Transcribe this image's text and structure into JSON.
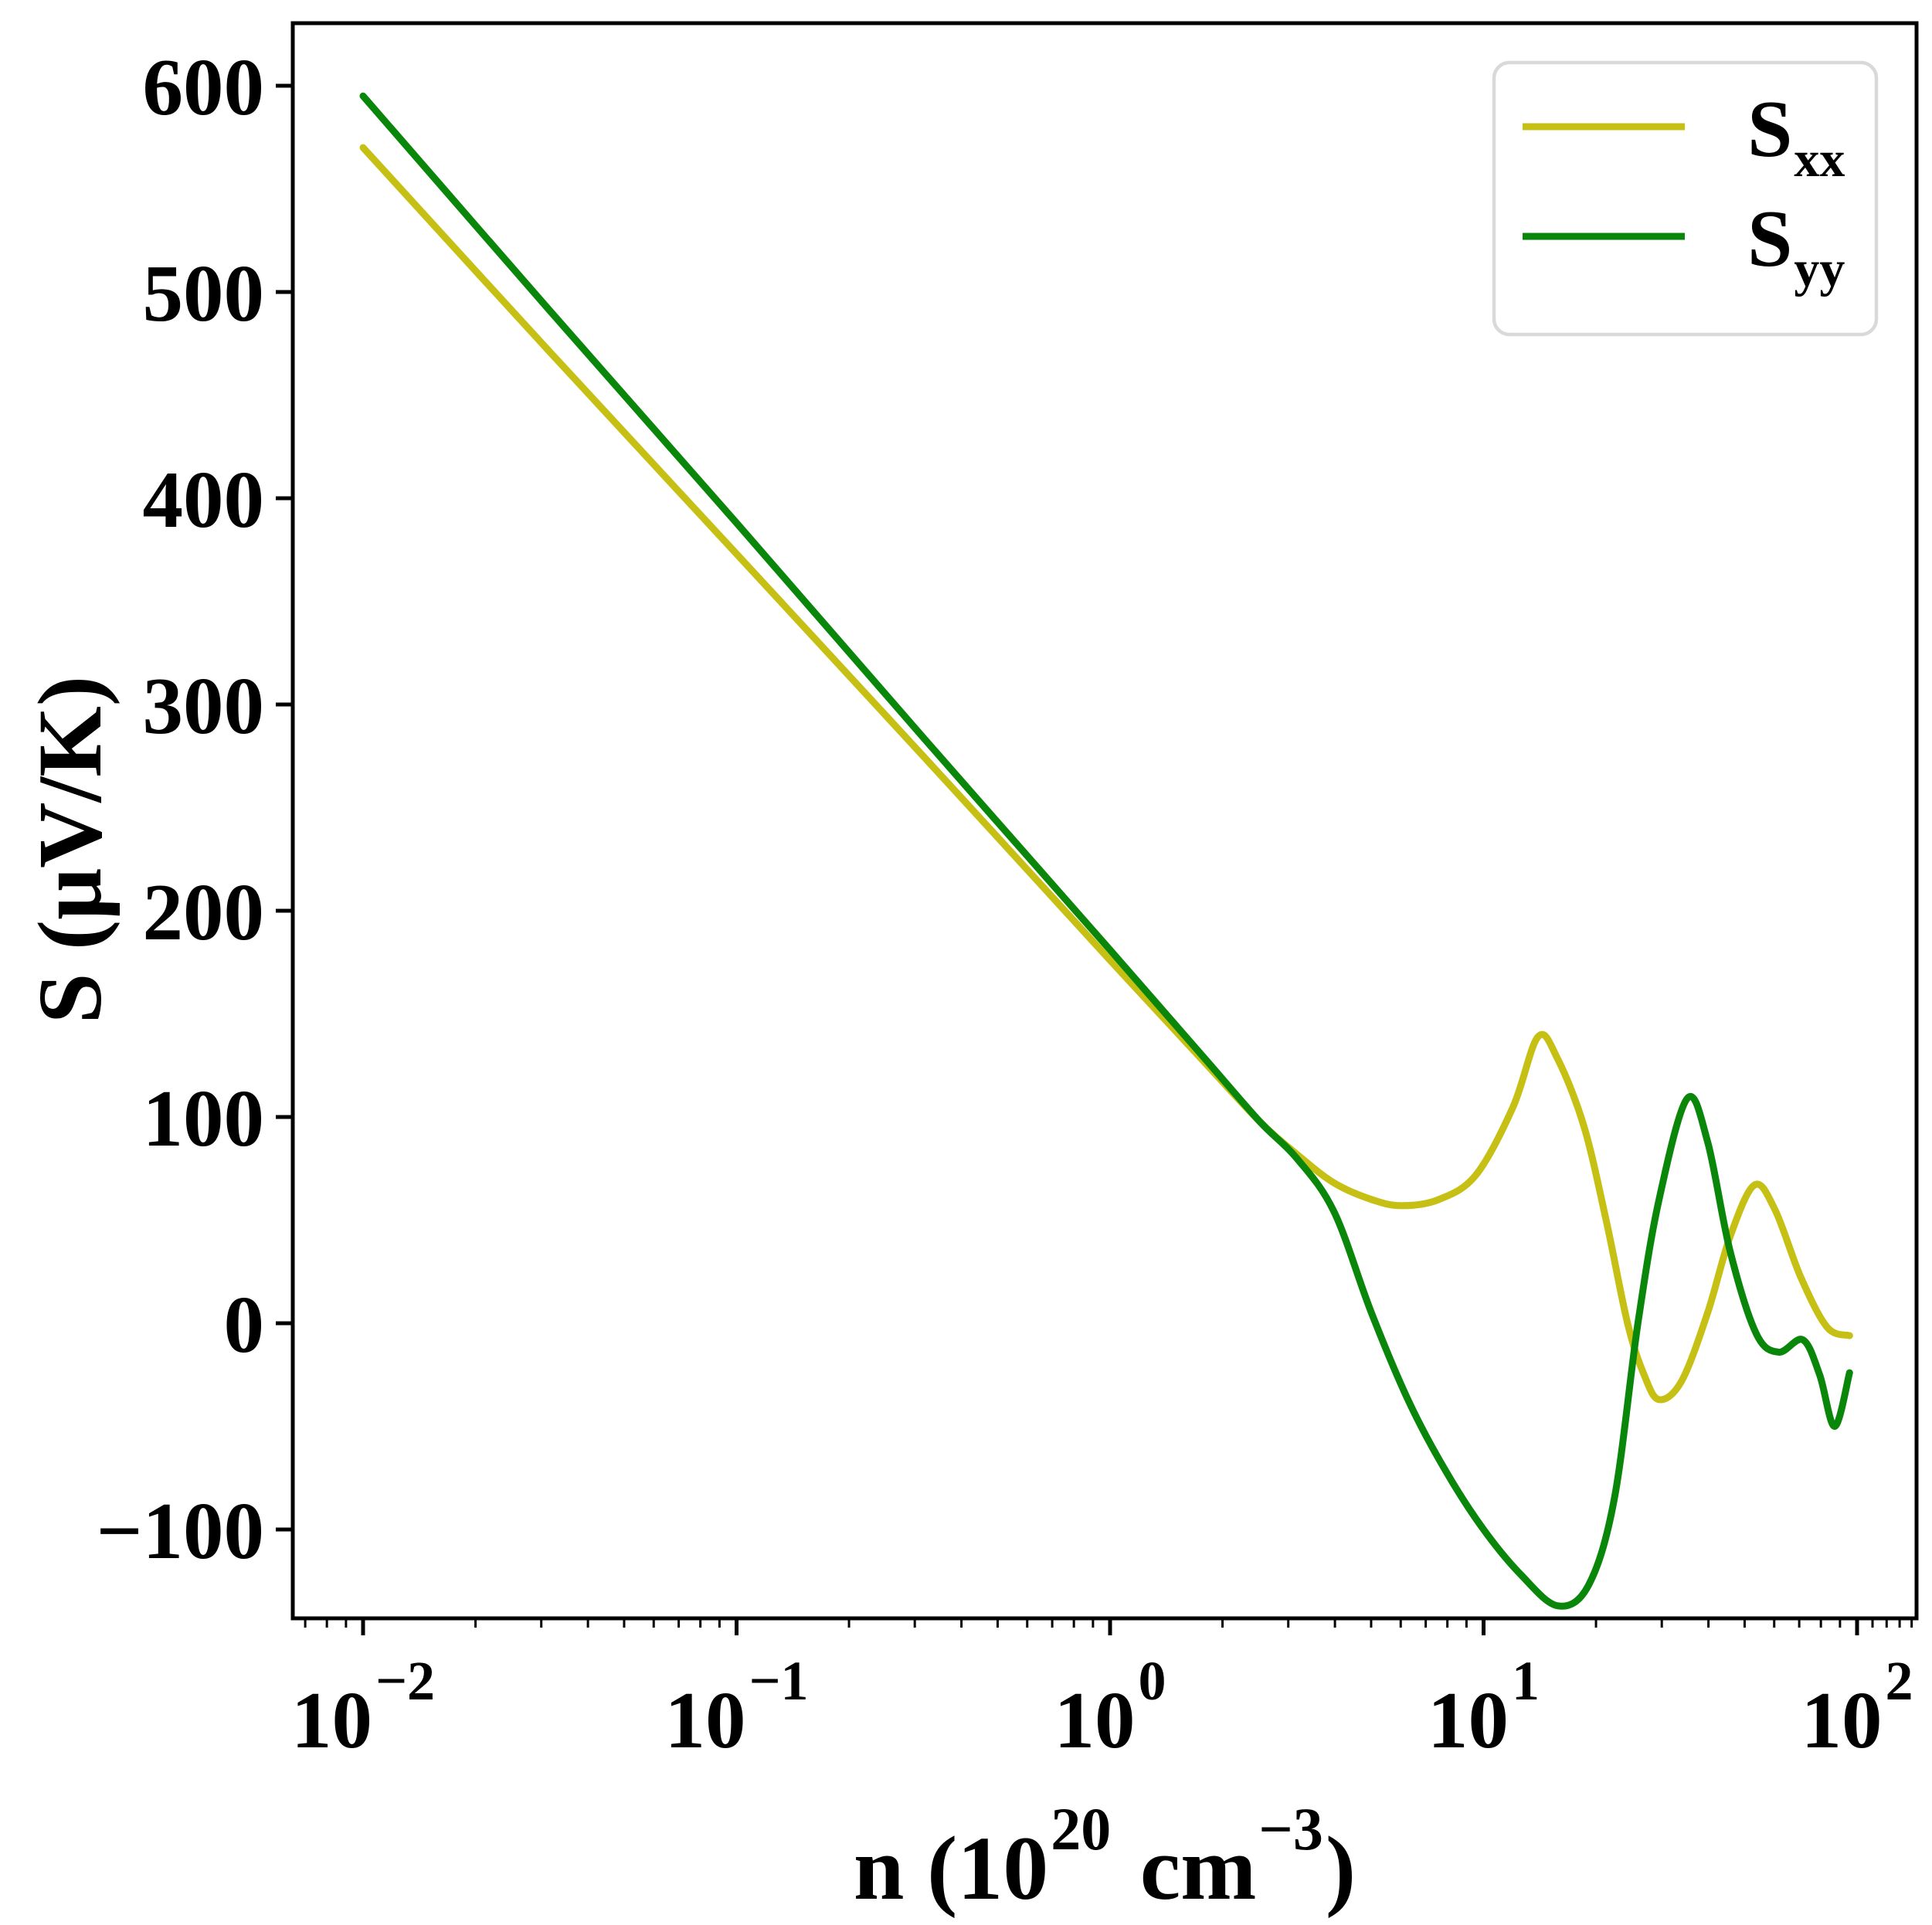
{
  "figure": {
    "background": "#ffffff",
    "spine_color": "#000000"
  },
  "chart_data": {
    "type": "line",
    "title": "",
    "xscale": "log",
    "xlabel": {
      "prefix": "n (10",
      "exp1": "20",
      "middle": " cm",
      "exp2": "−3",
      "suffix": ")"
    },
    "ylabel": "S (μV/K)",
    "xlim": [
      0.0065,
      144
    ],
    "ylim": [
      -143,
      630
    ],
    "grid": false,
    "x_ticks": [
      {
        "base": "10",
        "exp": "−2",
        "value": 0.01
      },
      {
        "base": "10",
        "exp": "−1",
        "value": 0.1
      },
      {
        "base": "10",
        "exp": "0",
        "value": 1
      },
      {
        "base": "10",
        "exp": "1",
        "value": 10
      },
      {
        "base": "10",
        "exp": "2",
        "value": 100
      }
    ],
    "y_ticks": [
      {
        "label": "600",
        "value": 600
      },
      {
        "label": "500",
        "value": 500
      },
      {
        "label": "400",
        "value": 400
      },
      {
        "label": "300",
        "value": 300
      },
      {
        "label": "200",
        "value": 200
      },
      {
        "label": "100",
        "value": 100
      },
      {
        "label": "0",
        "value": 0
      },
      {
        "label": "−100",
        "value": -100
      }
    ],
    "legend": {
      "location": "upper right",
      "border_color": "#d9d9d9",
      "background": "#ffffff"
    },
    "series": [
      {
        "name": "Sxx",
        "legend_base": "S",
        "legend_sub": "xx",
        "color": "#c6c014",
        "points": [
          [
            0.01,
            570
          ],
          [
            0.0316,
            471
          ],
          [
            0.1,
            373
          ],
          [
            0.316,
            275
          ],
          [
            1.0,
            176
          ],
          [
            1.78,
            127
          ],
          [
            2.51,
            98
          ],
          [
            3.16,
            82
          ],
          [
            3.98,
            68
          ],
          [
            5.01,
            60
          ],
          [
            6.03,
            57
          ],
          [
            7.59,
            60
          ],
          [
            9.55,
            72
          ],
          [
            12.0,
            105
          ],
          [
            14.0,
            139
          ],
          [
            15.8,
            128
          ],
          [
            18.6,
            95
          ],
          [
            21.4,
            48
          ],
          [
            24.3,
            0
          ],
          [
            26.9,
            -25
          ],
          [
            29.5,
            -37
          ],
          [
            33.9,
            -28
          ],
          [
            39.8,
            5
          ],
          [
            45.7,
            42
          ],
          [
            53.1,
            67
          ],
          [
            60.3,
            55
          ],
          [
            70.8,
            22
          ],
          [
            83.2,
            -2
          ],
          [
            95.5,
            -6
          ]
        ]
      },
      {
        "name": "Syy",
        "legend_base": "S",
        "legend_sub": "yy",
        "color": "#0a870a",
        "points": [
          [
            0.01,
            595
          ],
          [
            0.0316,
            491
          ],
          [
            0.1,
            388
          ],
          [
            0.316,
            284
          ],
          [
            1.0,
            181
          ],
          [
            1.78,
            129
          ],
          [
            2.51,
            98
          ],
          [
            3.16,
            80
          ],
          [
            3.98,
            54
          ],
          [
            5.01,
            5
          ],
          [
            6.31,
            -38
          ],
          [
            7.94,
            -72
          ],
          [
            10.0,
            -100
          ],
          [
            12.6,
            -122
          ],
          [
            15.8,
            -137
          ],
          [
            19.1,
            -127
          ],
          [
            22.4,
            -85
          ],
          [
            25.9,
            0
          ],
          [
            29.5,
            60
          ],
          [
            35.1,
            109
          ],
          [
            39.8,
            88
          ],
          [
            45.7,
            35
          ],
          [
            53.7,
            -5
          ],
          [
            61.7,
            -14
          ],
          [
            71.6,
            -8
          ],
          [
            79.4,
            -25
          ],
          [
            87.1,
            -50
          ],
          [
            95.5,
            -24
          ]
        ]
      }
    ]
  }
}
